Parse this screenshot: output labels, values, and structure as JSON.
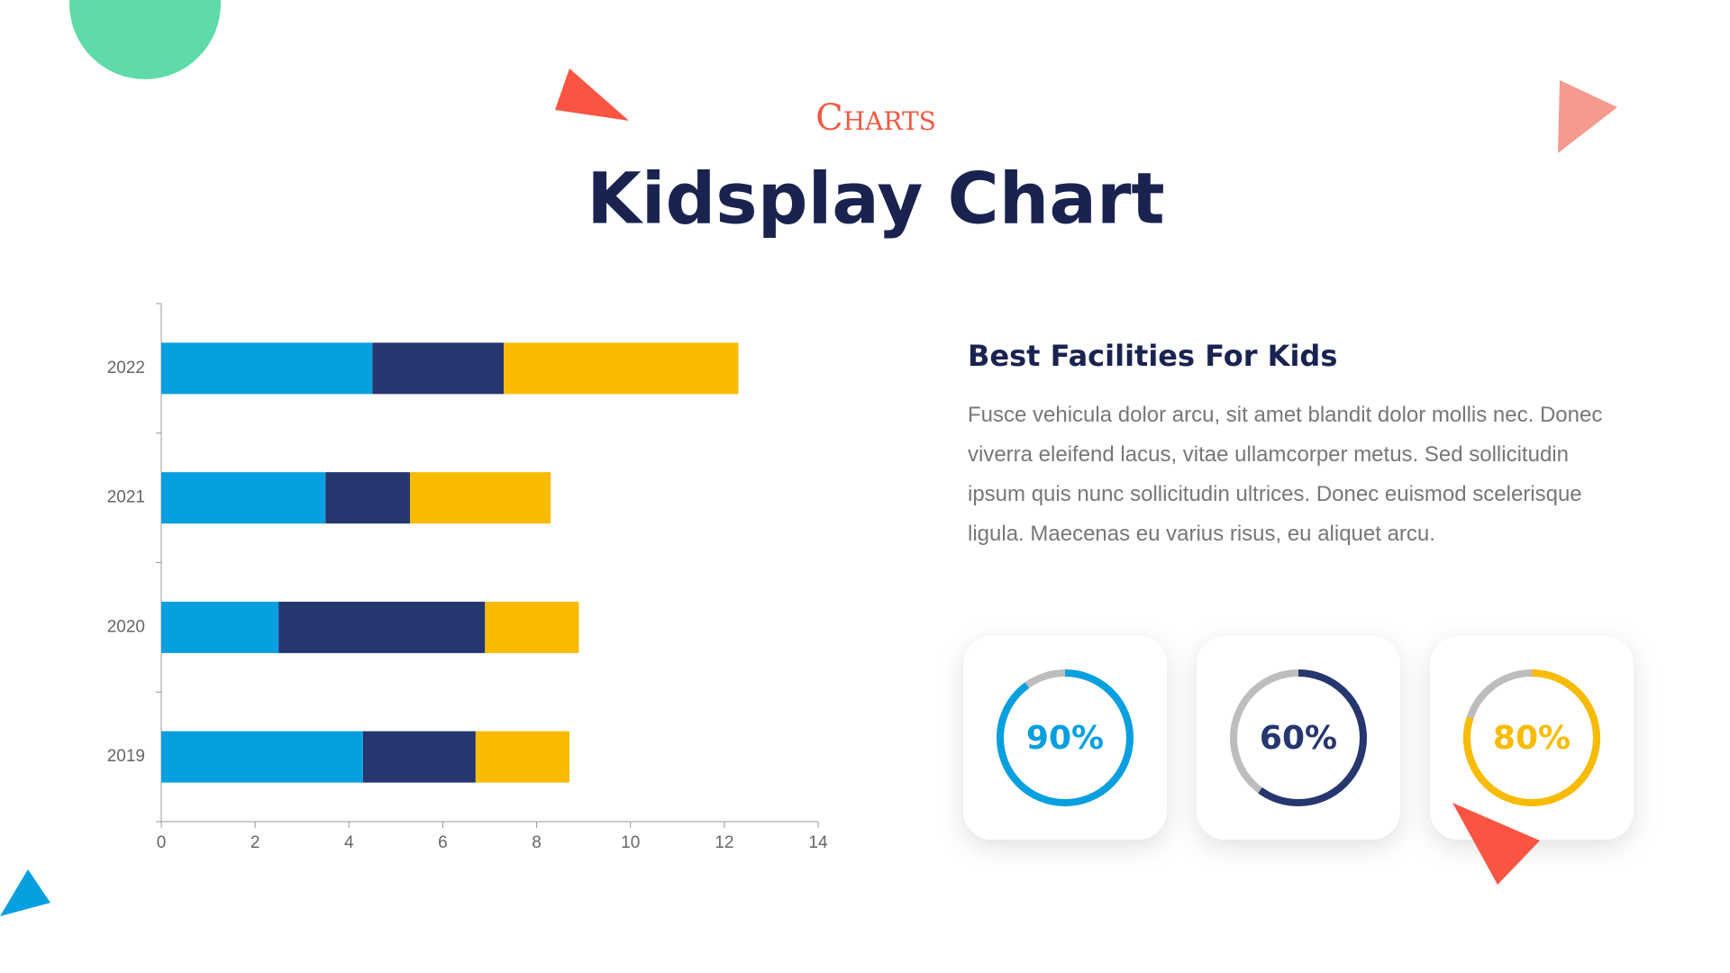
{
  "header": {
    "kicker": "Charts",
    "title": "Kidsplay Chart"
  },
  "text": {
    "heading": "Best Facilities For Kids",
    "body": "Fusce vehicula dolor arcu, sit amet blandit dolor mollis nec. Donec viverra eleifend lacus, vitae ullamcorper metus. Sed sollicitudin ipsum quis nunc sollicitudin ultrices. Donec euismod scelerisque ligula. Maecenas eu varius risus, eu aliquet arcu."
  },
  "chart_data": [
    {
      "type": "bar",
      "orientation": "horizontal",
      "stacked": true,
      "categories": [
        "2019",
        "2020",
        "2021",
        "2022"
      ],
      "series": [
        {
          "color": "#069fdf",
          "values": [
            4.3,
            2.5,
            3.5,
            4.5
          ]
        },
        {
          "color": "#26366e",
          "values": [
            2.4,
            4.4,
            1.8,
            2.8
          ]
        },
        {
          "color": "#f8bb00",
          "values": [
            2.0,
            2.0,
            3.0,
            5.0
          ]
        }
      ],
      "xlim": [
        0,
        14
      ],
      "xticks": [
        0,
        2,
        4,
        6,
        8,
        10,
        12,
        14
      ],
      "grid": false
    },
    {
      "type": "ring",
      "values": [
        90,
        60,
        80
      ],
      "value_labels": [
        "90%",
        "60%",
        "80%"
      ],
      "colors": [
        "#069fdf",
        "#26366e",
        "#f8bb00"
      ],
      "track_color": "#bdbdbd"
    }
  ]
}
